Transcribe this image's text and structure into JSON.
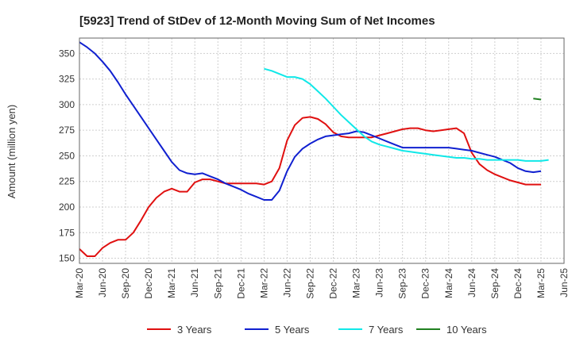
{
  "chart_data": {
    "type": "line",
    "title": "[5923]  Trend of StDev of 12-Month Moving Sum of Net Incomes",
    "ylabel": "Amount (million yen)",
    "xlabel": "",
    "ylim": [
      145,
      365
    ],
    "yticks": [
      150,
      175,
      200,
      225,
      250,
      275,
      300,
      325,
      350
    ],
    "xticks": [
      "Mar-20",
      "Jun-20",
      "Sep-20",
      "Dec-20",
      "Mar-21",
      "Jun-21",
      "Sep-21",
      "Dec-21",
      "Mar-22",
      "Jun-22",
      "Sep-22",
      "Dec-22",
      "Mar-23",
      "Jun-23",
      "Sep-23",
      "Dec-23",
      "Mar-24",
      "Jun-24",
      "Sep-24",
      "Dec-24",
      "Mar-25",
      "Jun-25"
    ],
    "grid": true,
    "legend_position": "bottom",
    "series": [
      {
        "name": "3 Years",
        "color": "#e01010",
        "start_index": 0,
        "values": [
          159,
          152,
          152,
          160,
          165,
          168,
          168,
          175,
          187,
          200,
          209,
          215,
          218,
          215,
          215,
          224,
          227,
          227,
          225,
          223,
          223,
          223,
          223,
          223,
          222,
          225,
          238,
          265,
          280,
          287,
          288,
          286,
          281,
          273,
          269,
          268,
          268,
          268,
          268,
          270,
          272,
          274,
          276,
          277,
          277,
          275,
          274,
          275,
          276,
          277,
          272,
          253,
          242,
          236,
          232,
          229,
          226,
          224,
          222,
          222,
          222
        ]
      },
      {
        "name": "5 Years",
        "color": "#1020d0",
        "start_index": 0,
        "values": [
          361,
          356,
          350,
          342,
          333,
          322,
          310,
          299,
          288,
          277,
          266,
          255,
          244,
          236,
          233,
          232,
          233,
          230,
          227,
          223,
          220,
          217,
          213,
          210,
          207,
          207,
          216,
          235,
          249,
          257,
          262,
          266,
          269,
          270,
          271,
          272,
          274,
          273,
          270,
          267,
          264,
          261,
          258,
          258,
          258,
          258,
          258,
          258,
          258,
          257,
          256,
          255,
          253,
          251,
          249,
          246,
          243,
          238,
          235,
          234,
          235
        ]
      },
      {
        "name": "7 Years",
        "color": "#10e8e8",
        "start_index": 24,
        "values": [
          335,
          333,
          330,
          327,
          327,
          325,
          320,
          313,
          306,
          298,
          290,
          283,
          276,
          269,
          264,
          261,
          259,
          257,
          255,
          254,
          253,
          252,
          251,
          250,
          249,
          248,
          248,
          247,
          247,
          246,
          246,
          246,
          246,
          246,
          245,
          245,
          245,
          246
        ]
      },
      {
        "name": "10 Years",
        "color": "#208020",
        "start_index": 59,
        "values": [
          306,
          305
        ]
      }
    ]
  }
}
